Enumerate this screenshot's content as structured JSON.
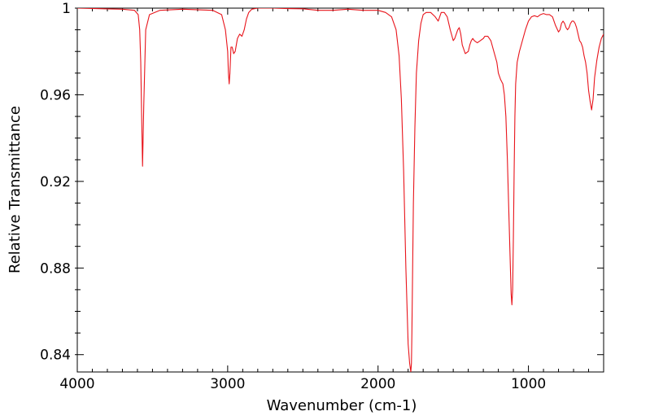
{
  "chart_data": {
    "type": "line",
    "title": "",
    "xlabel": "Wavenumber (cm-1)",
    "ylabel": "Relative Transmittance",
    "xlim": [
      4000,
      500
    ],
    "ylim": [
      0.832,
      1.0
    ],
    "x_reversed": true,
    "grid": false,
    "legend": "none",
    "x_ticks": [
      4000,
      3000,
      2000,
      1000
    ],
    "x_tick_labels": [
      "4000",
      "3000",
      "2000",
      "1000"
    ],
    "y_ticks": [
      1.0,
      0.96,
      0.92,
      0.88,
      0.84
    ],
    "y_tick_labels": [
      "1",
      "0.96",
      "0.92",
      "0.88",
      "0.84"
    ],
    "line_color": "#e8141b",
    "series": [
      {
        "x": [
          4000,
          3700,
          3620,
          3595,
          3585,
          3578,
          3572,
          3566,
          3558,
          3545,
          3520,
          3450,
          3300,
          3100,
          3040,
          3015,
          3000,
          2995,
          2990,
          2985,
          2978,
          2970,
          2960,
          2950,
          2935,
          2920,
          2905,
          2890,
          2875,
          2860,
          2840,
          2800,
          2700,
          2600,
          2500,
          2400,
          2300,
          2200,
          2100,
          2000,
          1950,
          1910,
          1880,
          1860,
          1845,
          1830,
          1815,
          1800,
          1790,
          1782,
          1778,
          1775,
          1770,
          1765,
          1755,
          1745,
          1730,
          1715,
          1700,
          1680,
          1650,
          1620,
          1600,
          1580,
          1560,
          1540,
          1520,
          1500,
          1490,
          1480,
          1470,
          1460,
          1450,
          1440,
          1420,
          1400,
          1390,
          1380,
          1370,
          1360,
          1340,
          1320,
          1300,
          1290,
          1280,
          1270,
          1250,
          1230,
          1210,
          1200,
          1185,
          1170,
          1160,
          1150,
          1140,
          1130,
          1120,
          1115,
          1110,
          1105,
          1100,
          1095,
          1090,
          1085,
          1075,
          1060,
          1040,
          1020,
          1000,
          980,
          960,
          940,
          920,
          900,
          880,
          860,
          840,
          820,
          800,
          790,
          780,
          770,
          760,
          750,
          740,
          730,
          720,
          710,
          700,
          690,
          680,
          670,
          660,
          650,
          640,
          630,
          620,
          610,
          600,
          590,
          580,
          570,
          560,
          545,
          530,
          515,
          500
        ],
        "y": [
          1.0,
          0.9995,
          0.999,
          0.997,
          0.99,
          0.975,
          0.95,
          0.927,
          0.955,
          0.99,
          0.997,
          0.999,
          0.9995,
          0.999,
          0.997,
          0.99,
          0.98,
          0.97,
          0.965,
          0.97,
          0.982,
          0.982,
          0.979,
          0.98,
          0.986,
          0.988,
          0.987,
          0.99,
          0.995,
          0.998,
          0.9995,
          1.0,
          1.0,
          0.9998,
          0.9997,
          0.999,
          0.999,
          0.9995,
          0.999,
          0.999,
          0.998,
          0.996,
          0.99,
          0.978,
          0.958,
          0.925,
          0.88,
          0.845,
          0.836,
          0.832,
          0.836,
          0.85,
          0.88,
          0.91,
          0.945,
          0.97,
          0.985,
          0.993,
          0.997,
          0.998,
          0.998,
          0.996,
          0.994,
          0.998,
          0.998,
          0.996,
          0.99,
          0.985,
          0.986,
          0.988,
          0.99,
          0.991,
          0.988,
          0.983,
          0.979,
          0.98,
          0.983,
          0.985,
          0.986,
          0.985,
          0.984,
          0.985,
          0.986,
          0.987,
          0.987,
          0.987,
          0.985,
          0.98,
          0.975,
          0.97,
          0.967,
          0.965,
          0.96,
          0.95,
          0.93,
          0.905,
          0.88,
          0.868,
          0.863,
          0.87,
          0.895,
          0.925,
          0.95,
          0.965,
          0.975,
          0.98,
          0.985,
          0.99,
          0.994,
          0.996,
          0.9965,
          0.996,
          0.997,
          0.9975,
          0.997,
          0.997,
          0.996,
          0.992,
          0.989,
          0.99,
          0.993,
          0.994,
          0.993,
          0.991,
          0.99,
          0.991,
          0.993,
          0.994,
          0.994,
          0.993,
          0.991,
          0.988,
          0.985,
          0.984,
          0.982,
          0.978,
          0.975,
          0.97,
          0.962,
          0.957,
          0.953,
          0.958,
          0.968,
          0.976,
          0.982,
          0.986,
          0.988
        ]
      }
    ]
  }
}
